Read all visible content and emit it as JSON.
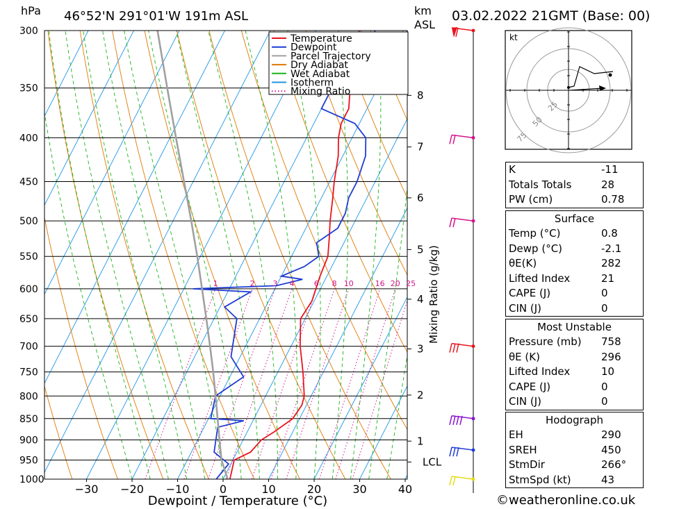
{
  "header": {
    "pressure_unit": "hPa",
    "location": "46°52'N  291°01'W  191m  ASL",
    "km_unit": "km",
    "asl_label": "ASL",
    "datetime": "03.02.2022  21GMT  (Base: 00)"
  },
  "legend": [
    {
      "name": "Temperature",
      "color": "#e8141e"
    },
    {
      "name": "Dewpoint",
      "color": "#1e3cd2"
    },
    {
      "name": "Parcel Trajectory",
      "color": "#a0a0a0"
    },
    {
      "name": "Dry Adiabat",
      "color": "#e07800"
    },
    {
      "name": "Wet Adiabat",
      "color": "#18b418"
    },
    {
      "name": "Isotherm",
      "color": "#1e96e6"
    },
    {
      "name": "Mixing Ratio",
      "color": "#d2148c"
    }
  ],
  "chart_data": {
    "type": "line",
    "xlabel": "Dewpoint / Temperature (°C)",
    "x_ticks": [
      -30,
      -20,
      -10,
      0,
      10,
      20,
      30,
      40
    ],
    "y_ticks": [
      300,
      350,
      400,
      450,
      500,
      550,
      600,
      650,
      700,
      750,
      800,
      850,
      900,
      950,
      1000
    ],
    "ylim": [
      1000,
      300
    ],
    "y_scale": "log",
    "km_axis_title": "km",
    "km_ticks": [
      {
        "label": "8",
        "p": 357
      },
      {
        "label": "7",
        "p": 410
      },
      {
        "label": "6",
        "p": 470
      },
      {
        "label": "5",
        "p": 540
      },
      {
        "label": "4",
        "p": 617
      },
      {
        "label": "3",
        "p": 705
      },
      {
        "label": "2",
        "p": 798
      },
      {
        "label": "1",
        "p": 903
      },
      {
        "label": "LCL",
        "p": 955
      }
    ],
    "mixing_ratio_axis_label": "Mixing Ratio (g/kg)",
    "mixing_ratio_labels": [
      "1",
      "2",
      "3",
      "4",
      "6",
      "8",
      "10",
      "16",
      "20",
      "25"
    ],
    "mixing_ratio_values": [
      1,
      2,
      3,
      4,
      6,
      8,
      10,
      16,
      20,
      25
    ],
    "series": [
      {
        "name": "Temperature",
        "color": "#e8141e",
        "points": [
          [
            1000,
            1.5
          ],
          [
            950,
            0.3
          ],
          [
            930,
            3.0
          ],
          [
            900,
            4.0
          ],
          [
            880,
            6.0
          ],
          [
            850,
            8.5
          ],
          [
            820,
            9.0
          ],
          [
            800,
            8.5
          ],
          [
            750,
            5.5
          ],
          [
            700,
            2.0
          ],
          [
            650,
            -1.0
          ],
          [
            620,
            -0.5
          ],
          [
            600,
            -1.0
          ],
          [
            580,
            -1.5
          ],
          [
            550,
            -2.0
          ],
          [
            520,
            -4.0
          ],
          [
            500,
            -5.5
          ],
          [
            470,
            -7.5
          ],
          [
            450,
            -9.0
          ],
          [
            420,
            -11.0
          ],
          [
            400,
            -13.0
          ],
          [
            385,
            -14.0
          ],
          [
            370,
            -14.0
          ],
          [
            350,
            -16.0
          ],
          [
            330,
            -17.5
          ],
          [
            300,
            -20.5
          ]
        ]
      },
      {
        "name": "Dewpoint",
        "color": "#1e3cd2",
        "points": [
          [
            1000,
            -1.5
          ],
          [
            960,
            -0.5
          ],
          [
            930,
            -5.0
          ],
          [
            900,
            -6.0
          ],
          [
            870,
            -7.0
          ],
          [
            855,
            -2.0
          ],
          [
            850,
            -9.5
          ],
          [
            800,
            -11.0
          ],
          [
            760,
            -7.0
          ],
          [
            720,
            -12.0
          ],
          [
            650,
            -15.0
          ],
          [
            630,
            -19.0
          ],
          [
            605,
            -15.0
          ],
          [
            600,
            -28.0
          ],
          [
            595,
            -10.0
          ],
          [
            585,
            -5.0
          ],
          [
            580,
            -10.0
          ],
          [
            565,
            -6.0
          ],
          [
            550,
            -4.0
          ],
          [
            530,
            -6.0
          ],
          [
            510,
            -3.0
          ],
          [
            490,
            -3.0
          ],
          [
            470,
            -4.0
          ],
          [
            450,
            -4.0
          ],
          [
            420,
            -5.0
          ],
          [
            400,
            -7.0
          ],
          [
            385,
            -11.0
          ],
          [
            370,
            -20.0
          ],
          [
            340,
            -20.0
          ],
          [
            330,
            -21.0
          ],
          [
            315,
            -16.0
          ],
          [
            300,
            -17.0
          ]
        ]
      },
      {
        "name": "Parcel Trajectory",
        "color": "#a0a0a0",
        "points": [
          [
            1000,
            1.0
          ],
          [
            950,
            -2.5
          ],
          [
            900,
            -5.2
          ],
          [
            850,
            -8.0
          ],
          [
            800,
            -11.0
          ],
          [
            750,
            -14.2
          ],
          [
            700,
            -17.8
          ],
          [
            650,
            -21.7
          ],
          [
            600,
            -26.0
          ],
          [
            550,
            -30.7
          ],
          [
            500,
            -36.0
          ],
          [
            450,
            -42.0
          ],
          [
            400,
            -48.7
          ],
          [
            350,
            -56.2
          ],
          [
            300,
            -64.8
          ]
        ]
      }
    ]
  },
  "hodograph": {
    "unit": "kt",
    "ring_labels": [
      "25",
      "50",
      "75"
    ]
  },
  "wind_barbs": [
    {
      "p": 300,
      "color": "#e8141e",
      "flags": 1,
      "barbs": 1
    },
    {
      "p": 400,
      "color": "#d2148c",
      "flags": 0,
      "barbs": 2
    },
    {
      "p": 500,
      "color": "#d2148c",
      "flags": 0,
      "barbs": 2
    },
    {
      "p": 700,
      "color": "#e8141e",
      "flags": 0,
      "barbs": 3
    },
    {
      "p": 850,
      "color": "#8c14d2",
      "flags": 0,
      "barbs": 4
    },
    {
      "p": 925,
      "color": "#1e3cd2",
      "flags": 0,
      "barbs": 3
    },
    {
      "p": 1000,
      "color": "#e6dc14",
      "flags": 0,
      "barbs": 2
    }
  ],
  "indices": {
    "general": [
      {
        "label": "K",
        "value": "-11"
      },
      {
        "label": "Totals Totals",
        "value": "28"
      },
      {
        "label": "PW (cm)",
        "value": "0.78"
      }
    ],
    "surface": {
      "title": "Surface",
      "rows": [
        {
          "label": "Temp (°C)",
          "value": "0.8"
        },
        {
          "label": "Dewp (°C)",
          "value": "-2.1"
        },
        {
          "label": "θE(K)",
          "value": "282"
        },
        {
          "label": "Lifted Index",
          "value": "21"
        },
        {
          "label": "CAPE (J)",
          "value": "0"
        },
        {
          "label": "CIN (J)",
          "value": "0"
        }
      ]
    },
    "most_unstable": {
      "title": "Most Unstable",
      "rows": [
        {
          "label": "Pressure (mb)",
          "value": "758"
        },
        {
          "label": "θE (K)",
          "value": "296"
        },
        {
          "label": "Lifted Index",
          "value": "10"
        },
        {
          "label": "CAPE (J)",
          "value": "0"
        },
        {
          "label": "CIN (J)",
          "value": "0"
        }
      ]
    },
    "hodograph": {
      "title": "Hodograph",
      "rows": [
        {
          "label": "EH",
          "value": "290"
        },
        {
          "label": "SREH",
          "value": "450"
        },
        {
          "label": "StmDir",
          "value": "266°"
        },
        {
          "label": "StmSpd (kt)",
          "value": "43"
        }
      ]
    }
  },
  "footer": "©weatheronline.co.uk"
}
